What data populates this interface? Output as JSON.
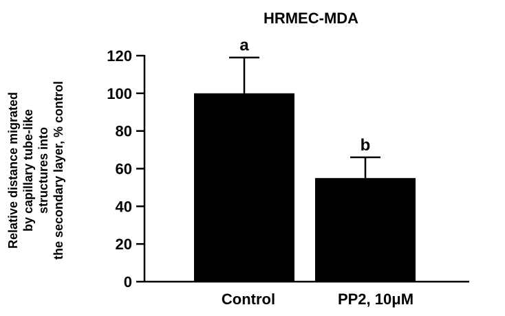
{
  "chart_data": {
    "type": "bar",
    "title": "HRMEC-MDA",
    "xlabel": "",
    "ylabel": [
      "Relative distance migrated",
      "by capillary tube-like",
      "structures into",
      "the secondary layer, % control"
    ],
    "categories": [
      "Control",
      "PP2, 10μM"
    ],
    "values": [
      100,
      55
    ],
    "errors": [
      19,
      11
    ],
    "significance": [
      "a",
      "b"
    ],
    "ylim": [
      0,
      120
    ],
    "yticks": [
      0,
      20,
      40,
      60,
      80,
      100,
      120
    ],
    "grid": false,
    "bar_color": "#000000"
  }
}
